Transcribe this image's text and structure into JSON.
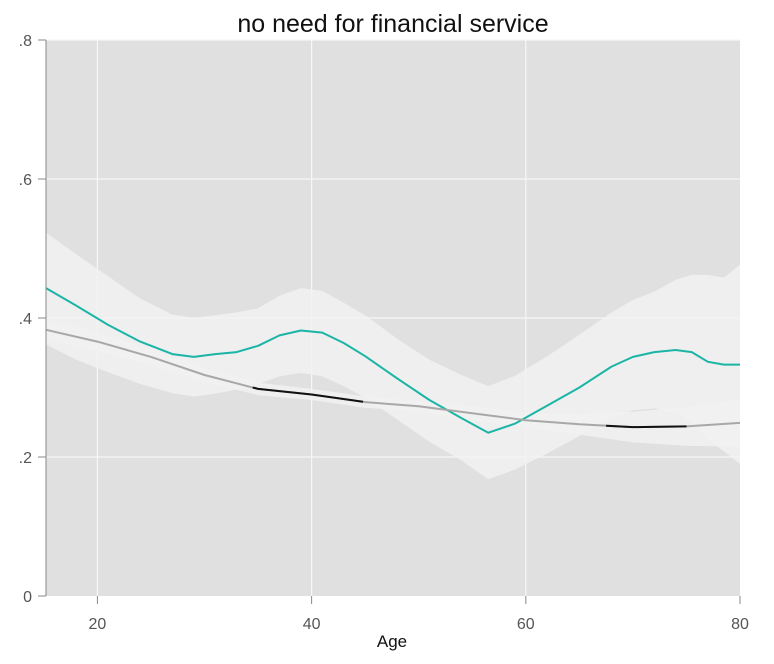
{
  "chart_data": {
    "type": "line",
    "title": "no need for financial service",
    "xlabel": "Age",
    "ylabel": "",
    "xlim": [
      15.2,
      80
    ],
    "ylim": [
      0,
      0.8
    ],
    "x_ticks": [
      20,
      40,
      60,
      80
    ],
    "x_tick_labels": [
      "20",
      "40",
      "60",
      "80"
    ],
    "y_ticks": [
      0,
      0.2,
      0.4,
      0.6,
      0.8
    ],
    "y_tick_labels": [
      "0",
      ".2",
      ".4",
      ".6",
      ".8"
    ],
    "grid": true,
    "colors": {
      "panel_bg": "#e0e0e0",
      "grid": "#f7f7f7",
      "band": "#f2f2f2",
      "teal": "#1ab5a6",
      "gray": "#a8a8a8",
      "black_segment": "#111111"
    },
    "series": [
      {
        "style": "teal",
        "x": [
          15.2,
          18,
          21,
          24,
          27,
          29,
          31,
          33,
          35,
          37,
          39,
          41,
          43,
          45,
          48,
          51,
          54,
          56.5,
          59,
          62,
          65,
          68,
          70,
          72,
          74,
          75.5,
          77,
          78.5,
          80
        ],
        "y": [
          0.443,
          0.418,
          0.39,
          0.366,
          0.348,
          0.344,
          0.348,
          0.351,
          0.36,
          0.375,
          0.382,
          0.379,
          0.364,
          0.345,
          0.313,
          0.282,
          0.256,
          0.235,
          0.248,
          0.274,
          0.3,
          0.33,
          0.344,
          0.351,
          0.354,
          0.351,
          0.337,
          0.333,
          0.333
        ],
        "band_upper": [
          0.523,
          0.492,
          0.46,
          0.428,
          0.405,
          0.4,
          0.404,
          0.408,
          0.414,
          0.432,
          0.443,
          0.439,
          0.422,
          0.404,
          0.37,
          0.34,
          0.318,
          0.302,
          0.317,
          0.345,
          0.376,
          0.408,
          0.426,
          0.438,
          0.455,
          0.462,
          0.462,
          0.458,
          0.477
        ],
        "band_lower": [
          0.362,
          0.34,
          0.322,
          0.305,
          0.292,
          0.287,
          0.291,
          0.297,
          0.305,
          0.316,
          0.321,
          0.316,
          0.302,
          0.285,
          0.254,
          0.222,
          0.195,
          0.168,
          0.182,
          0.205,
          0.23,
          0.256,
          0.267,
          0.27,
          0.263,
          0.25,
          0.225,
          0.208,
          0.19
        ]
      },
      {
        "style": "gray",
        "x": [
          15.2,
          20,
          25,
          30,
          35,
          40,
          45,
          50,
          55,
          60,
          65,
          70,
          75,
          80
        ],
        "y": [
          0.383,
          0.366,
          0.344,
          0.318,
          0.298,
          0.29,
          0.279,
          0.273,
          0.263,
          0.253,
          0.247,
          0.243,
          0.244,
          0.249
        ],
        "band_upper": [
          0.397,
          0.38,
          0.356,
          0.328,
          0.307,
          0.298,
          0.287,
          0.281,
          0.273,
          0.264,
          0.262,
          0.265,
          0.272,
          0.283
        ],
        "band_lower": [
          0.369,
          0.352,
          0.332,
          0.308,
          0.289,
          0.282,
          0.271,
          0.265,
          0.253,
          0.242,
          0.232,
          0.221,
          0.216,
          0.215
        ],
        "highlight_ranges": [
          [
            34.5,
            44.8
          ],
          [
            67.5,
            75
          ]
        ]
      }
    ]
  }
}
